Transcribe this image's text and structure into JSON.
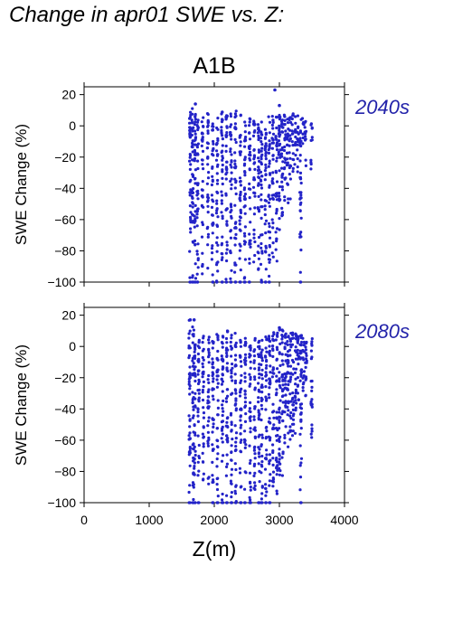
{
  "figure": {
    "title": "Change in apr01 SWE vs. Z:"
  },
  "chart_data": {
    "type": "scatter",
    "title": "A1B",
    "xlabel": "Z(m)",
    "ylabel": "SWE Change (%)",
    "xlim": [
      0,
      4000
    ],
    "ylim": [
      -100,
      25
    ],
    "x_ticks": [
      "0",
      "1000",
      "2000",
      "3000",
      "4000"
    ],
    "y_ticks": [
      "20",
      "0",
      "−20",
      "−40",
      "−60",
      "−80",
      "−100"
    ],
    "x_tick_values": [
      0,
      1000,
      2000,
      3000,
      4000
    ],
    "y_tick_values": [
      20,
      0,
      -20,
      -40,
      -60,
      -80,
      -100
    ],
    "grid": false,
    "marker_color": "#2323c8",
    "label_color": "#2323aa",
    "panels": [
      {
        "label": "2040s",
        "columns": [
          [
            1630,
            9,
            -100
          ],
          [
            1665,
            13,
            -100
          ],
          [
            1705,
            8,
            -100
          ],
          [
            1745,
            5,
            -100
          ],
          [
            1820,
            7,
            -98
          ],
          [
            1900,
            8,
            -95
          ],
          [
            1975,
            6,
            -100
          ],
          [
            2045,
            10,
            -100
          ],
          [
            2120,
            11,
            -100
          ],
          [
            2190,
            11,
            -100
          ],
          [
            2255,
            10,
            -100
          ],
          [
            2325,
            12,
            -100
          ],
          [
            2400,
            7,
            -100
          ],
          [
            2470,
            6,
            -100
          ],
          [
            2545,
            5,
            -100
          ],
          [
            2615,
            5,
            -95
          ],
          [
            2680,
            6,
            -98
          ],
          [
            2725,
            4,
            -100
          ],
          [
            2790,
            5,
            -100
          ],
          [
            2845,
            6,
            -100
          ],
          [
            2900,
            7,
            -93
          ],
          [
            2955,
            8,
            -90
          ],
          [
            3000,
            7,
            -80
          ],
          [
            3045,
            7,
            -72
          ],
          [
            3085,
            8,
            -62
          ],
          [
            3125,
            8,
            -55
          ],
          [
            3165,
            7,
            -48
          ],
          [
            3205,
            8,
            -40
          ],
          [
            3245,
            8,
            -35
          ],
          [
            3285,
            7,
            -32
          ],
          [
            3325,
            6,
            -100
          ],
          [
            3365,
            6,
            -20
          ],
          [
            3400,
            4,
            -28
          ],
          [
            3495,
            4,
            -28
          ]
        ],
        "outliers": [
          [
            2930,
            23
          ],
          [
            3000,
            13
          ],
          [
            1710,
            14
          ],
          [
            1660,
            2
          ]
        ]
      },
      {
        "label": "2080s",
        "columns": [
          [
            1620,
            17,
            -100
          ],
          [
            1675,
            17,
            -100
          ],
          [
            1700,
            4,
            -100
          ],
          [
            1760,
            5,
            -100
          ],
          [
            1830,
            7,
            -98
          ],
          [
            1910,
            8,
            -96
          ],
          [
            1980,
            7,
            -100
          ],
          [
            2050,
            8,
            -100
          ],
          [
            2125,
            10,
            -100
          ],
          [
            2195,
            10,
            -100
          ],
          [
            2265,
            9,
            -100
          ],
          [
            2330,
            11,
            -100
          ],
          [
            2405,
            7,
            -100
          ],
          [
            2475,
            6,
            -100
          ],
          [
            2550,
            5,
            -100
          ],
          [
            2620,
            6,
            -98
          ],
          [
            2685,
            7,
            -100
          ],
          [
            2730,
            5,
            -100
          ],
          [
            2795,
            7,
            -100
          ],
          [
            2850,
            8,
            -100
          ],
          [
            2905,
            9,
            -97
          ],
          [
            2960,
            10,
            -95
          ],
          [
            3005,
            12,
            -90
          ],
          [
            3050,
            11,
            -85
          ],
          [
            3090,
            10,
            -75
          ],
          [
            3130,
            11,
            -70
          ],
          [
            3170,
            9,
            -65
          ],
          [
            3210,
            10,
            -60
          ],
          [
            3250,
            10,
            -58
          ],
          [
            3290,
            9,
            -55
          ],
          [
            3330,
            8,
            -100
          ],
          [
            3370,
            8,
            -35
          ],
          [
            3410,
            6,
            -45
          ],
          [
            3495,
            6,
            -64
          ]
        ],
        "outliers": [
          [
            1630,
            17
          ],
          [
            1690,
            17
          ],
          [
            3000,
            12
          ],
          [
            1680,
            -81
          ]
        ]
      }
    ]
  }
}
